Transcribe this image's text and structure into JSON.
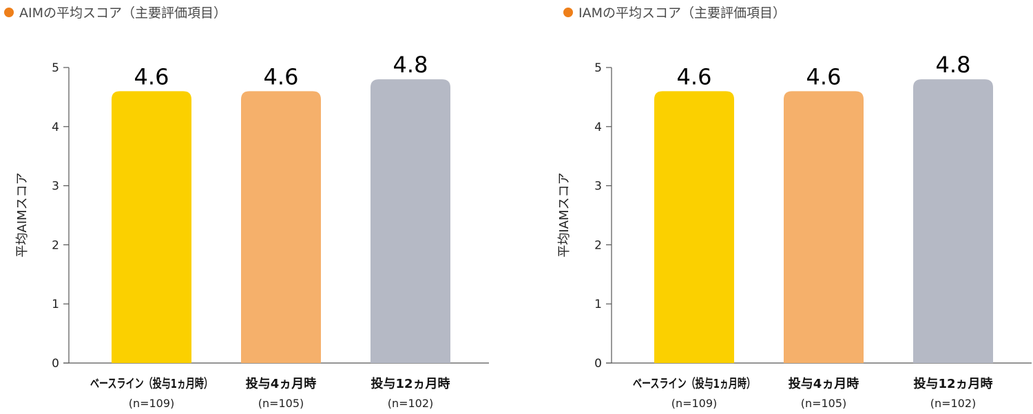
{
  "colors": {
    "title_dot": "#EE7F1A",
    "axis": "#555555",
    "bars": [
      "#FBD000",
      "#F5B06B",
      "#B5B9C5"
    ]
  },
  "chart_data": [
    {
      "type": "bar",
      "title": "AIMの平均スコア（主要評価項目）",
      "ylabel": "平均AIMスコア",
      "ylim": [
        0,
        5
      ],
      "yticks": [
        "0",
        "1",
        "2",
        "3",
        "4",
        "5"
      ],
      "categories": [
        "ベースライン（投与1ヵ月時）",
        "投与4ヵ月時",
        "投与12ヵ月時"
      ],
      "category_sublabels": [
        "(n=109)",
        "(n=105)",
        "(n=102)"
      ],
      "values": [
        4.6,
        4.6,
        4.8
      ],
      "data_labels": [
        "4.6",
        "4.6",
        "4.8"
      ],
      "grid": false
    },
    {
      "type": "bar",
      "title": "IAMの平均スコア（主要評価項目）",
      "ylabel": "平均IAMスコア",
      "ylim": [
        0,
        5
      ],
      "yticks": [
        "0",
        "1",
        "2",
        "3",
        "4",
        "5"
      ],
      "categories": [
        "ベースライン（投与1ヵ月時）",
        "投与4ヵ月時",
        "投与12ヵ月時"
      ],
      "category_sublabels": [
        "(n=109)",
        "(n=105)",
        "(n=102)"
      ],
      "values": [
        4.6,
        4.6,
        4.8
      ],
      "data_labels": [
        "4.6",
        "4.6",
        "4.8"
      ],
      "grid": false
    }
  ]
}
